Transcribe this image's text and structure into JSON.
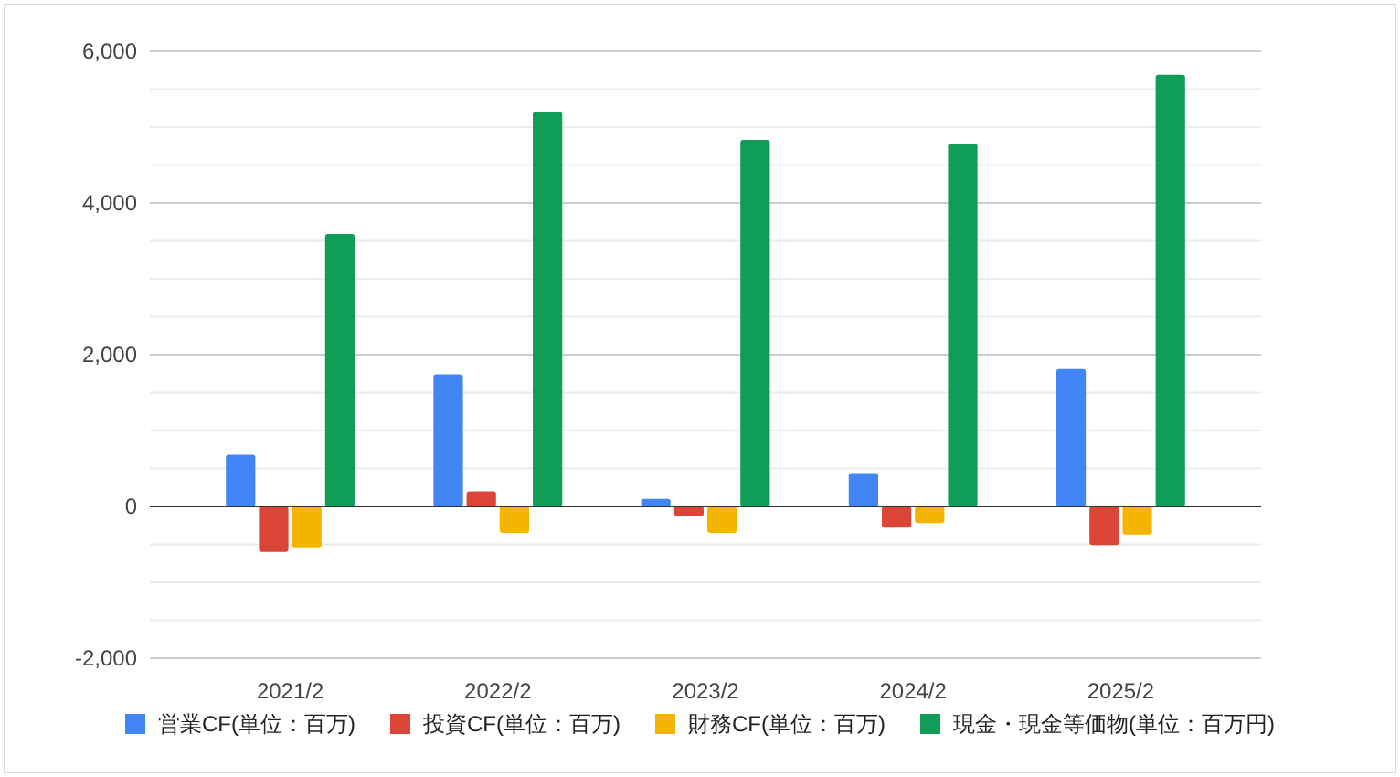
{
  "chart_data": {
    "type": "bar",
    "categories": [
      "2021/2",
      "2022/2",
      "2023/2",
      "2024/2",
      "2025/2"
    ],
    "series": [
      {
        "name": "営業CF(単位：百万)",
        "color": "#4285f4",
        "values": [
          680,
          1740,
          100,
          440,
          1810
        ]
      },
      {
        "name": "投資CF(単位：百万)",
        "color": "#db4437",
        "values": [
          -600,
          200,
          -130,
          -280,
          -510
        ]
      },
      {
        "name": "財務CF(単位：百万)",
        "color": "#f4b400",
        "values": [
          -540,
          -350,
          -350,
          -220,
          -370
        ]
      },
      {
        "name": "現金・現金等価物(単位：百万円)",
        "color": "#0f9d58",
        "values": [
          3590,
          5200,
          4830,
          4780,
          5690
        ]
      }
    ],
    "ylim": [
      -2000,
      6000
    ],
    "yticks": [
      {
        "value": -2000,
        "label": "-2,000"
      },
      {
        "value": -1500,
        "label": null
      },
      {
        "value": -1000,
        "label": null
      },
      {
        "value": -500,
        "label": null
      },
      0,
      {
        "value": 500,
        "label": null
      },
      {
        "value": 1000,
        "label": null
      },
      {
        "value": 1500,
        "label": null
      },
      {
        "value": 2000,
        "label": "2,000"
      },
      {
        "value": 2500,
        "label": null
      },
      {
        "value": 3000,
        "label": null
      },
      {
        "value": 3500,
        "label": null
      },
      {
        "value": 4000,
        "label": "4,000"
      },
      {
        "value": 4500,
        "label": null
      },
      {
        "value": 5000,
        "label": null
      },
      {
        "value": 5500,
        "label": null
      },
      {
        "value": 6000,
        "label": "6,000"
      }
    ],
    "grid": "y",
    "legend": "bottom"
  }
}
